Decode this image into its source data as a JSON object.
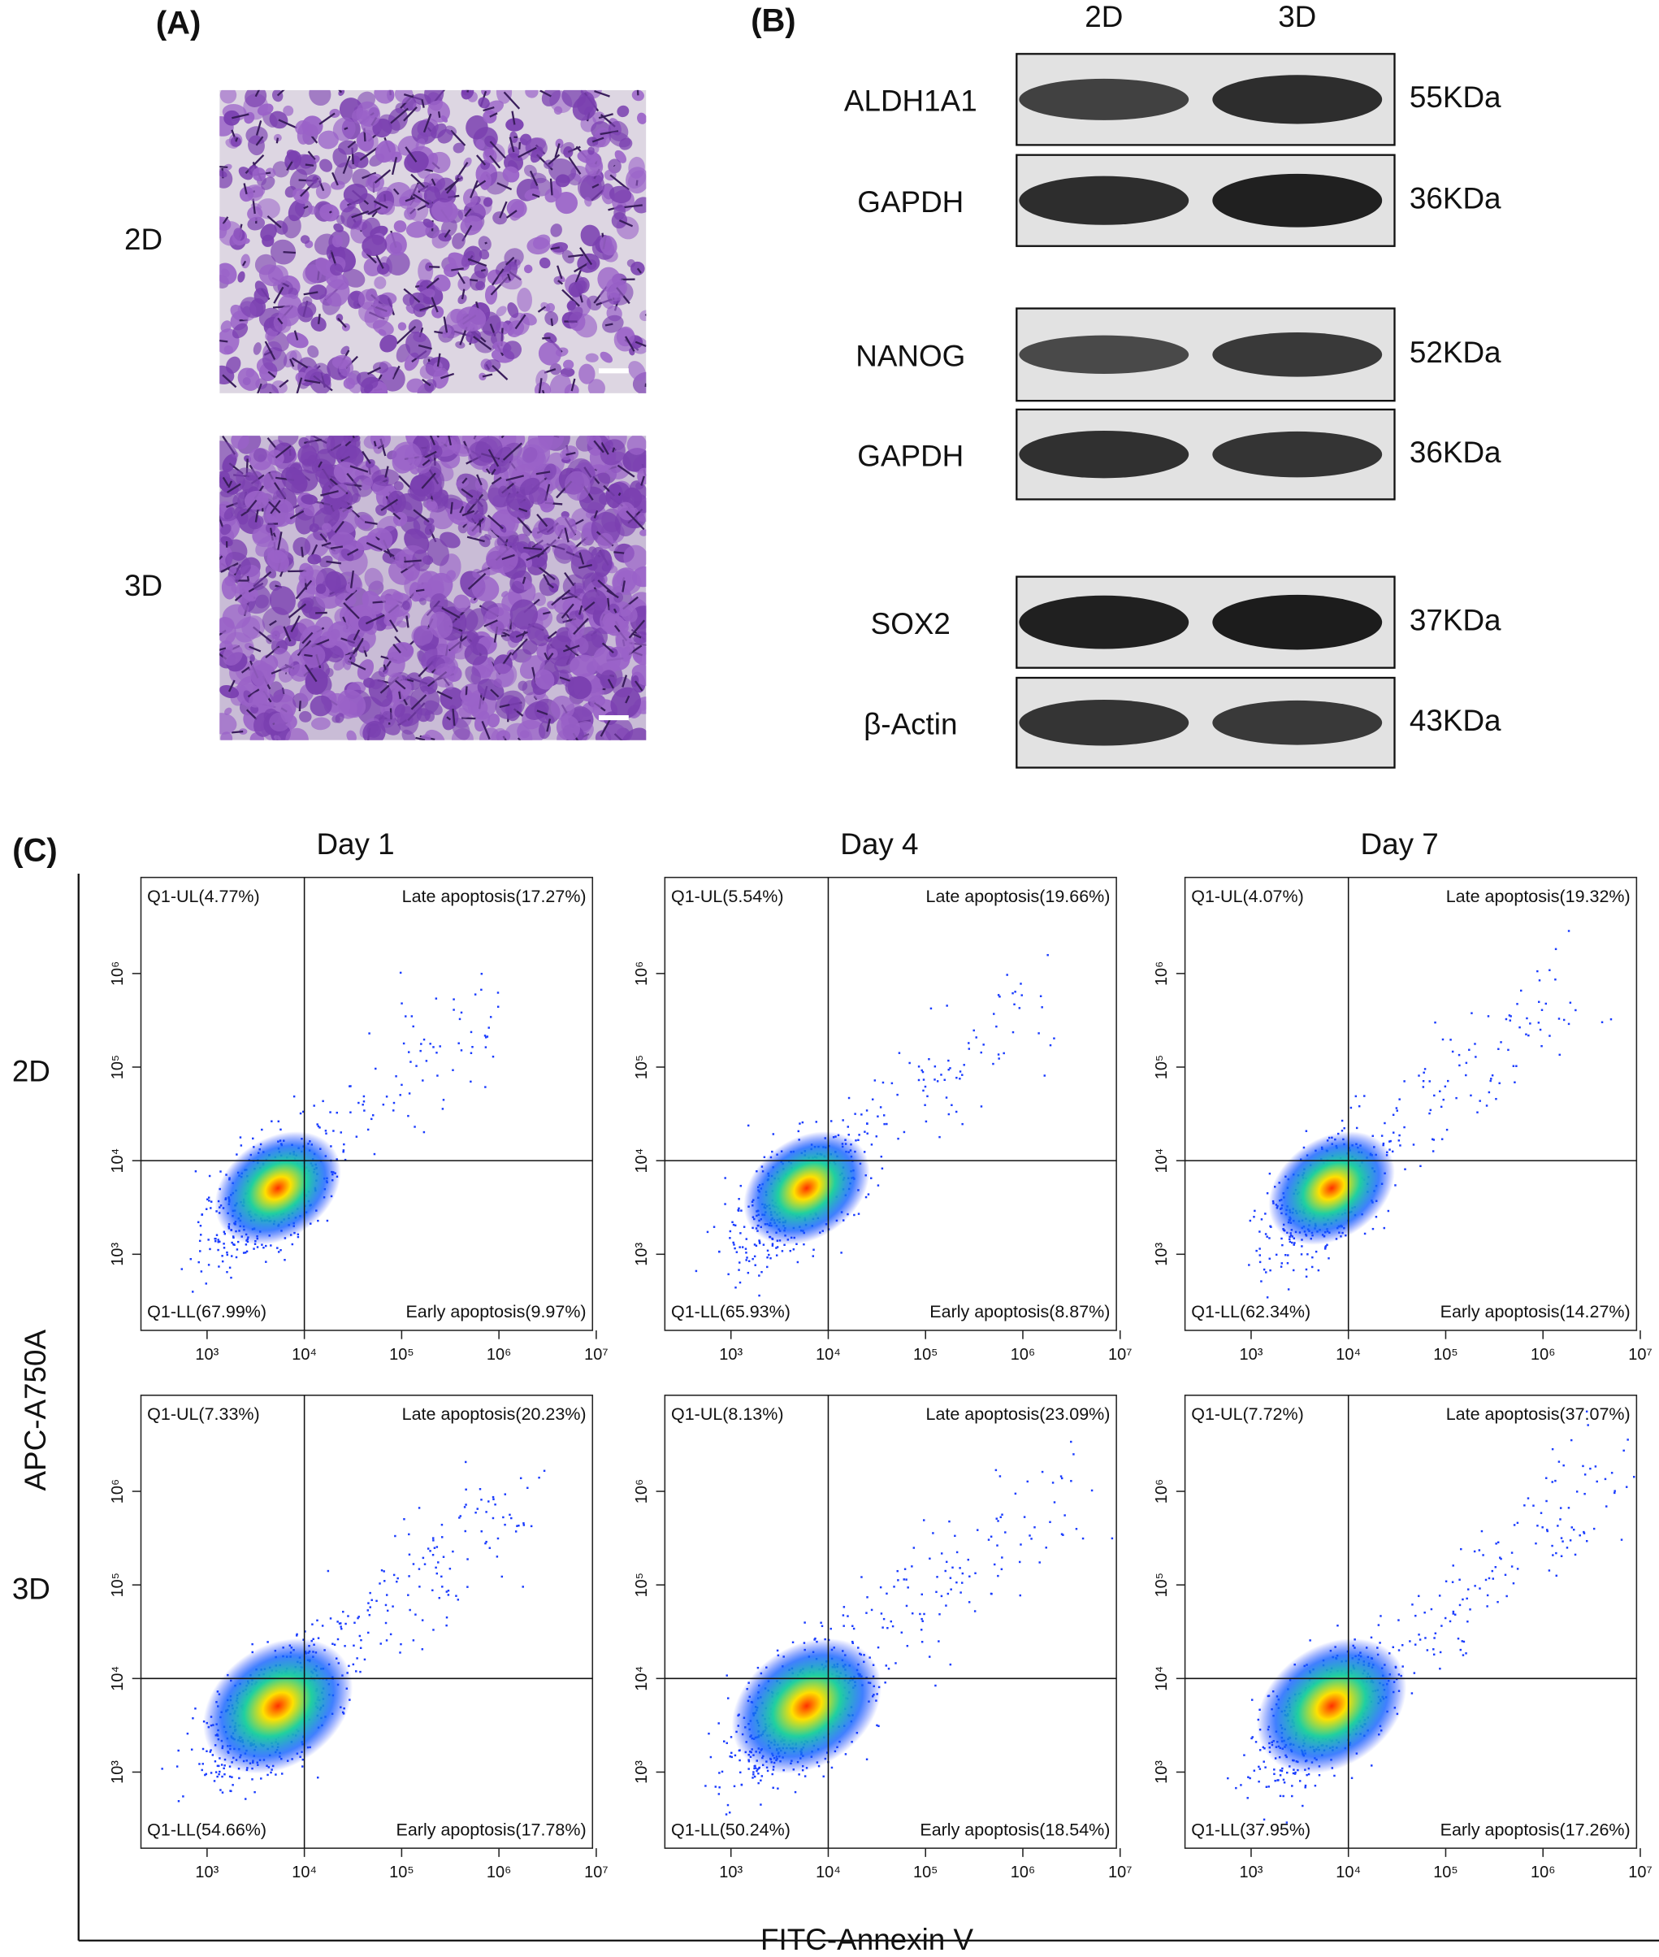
{
  "panel_a": {
    "label": "(A)",
    "rows": [
      "2D",
      "3D"
    ]
  },
  "panel_b": {
    "label": "(B)",
    "columns": [
      "2D",
      "3D"
    ],
    "blots": [
      {
        "protein": "ALDH1A1",
        "size": "55KDa"
      },
      {
        "protein": "GAPDH",
        "size": "36KDa"
      },
      {
        "protein": "NANOG",
        "size": "52KDa"
      },
      {
        "protein": "GAPDH",
        "size": "36KDa"
      },
      {
        "protein": "SOX2",
        "size": "37KDa"
      },
      {
        "protein": "β-Actin",
        "size": "43KDa"
      }
    ]
  },
  "panel_c": {
    "label": "(C)",
    "y_axis_label": "APC-A750A",
    "x_axis_label": "FITC-Annexin V",
    "columns": [
      "Day 1",
      "Day 4",
      "Day 7"
    ],
    "rows": [
      "2D",
      "3D"
    ],
    "x_ticks": [
      {
        "value": 3,
        "label": "10³"
      },
      {
        "value": 4,
        "label": "10⁴"
      },
      {
        "value": 5,
        "label": "10⁵"
      },
      {
        "value": 6,
        "label": "10⁶"
      },
      {
        "value": 7,
        "label": "10⁷"
      }
    ],
    "y_ticks": [
      {
        "value": 3,
        "label": "10³"
      },
      {
        "value": 4,
        "label": "10⁴"
      },
      {
        "value": 5,
        "label": "10⁵"
      },
      {
        "value": 6,
        "label": "10⁶"
      }
    ],
    "plots": [
      [
        {
          "ul": "Q1-UL(4.77%)",
          "ur": "Late apoptosis(17.27%)",
          "ll": "Q1-LL(67.99%)",
          "lr": "Early apoptosis(9.97%)"
        },
        {
          "ul": "Q1-UL(5.54%)",
          "ur": "Late apoptosis(19.66%)",
          "ll": "Q1-LL(65.93%)",
          "lr": "Early apoptosis(8.87%)"
        },
        {
          "ul": "Q1-UL(4.07%)",
          "ur": "Late apoptosis(19.32%)",
          "ll": "Q1-LL(62.34%)",
          "lr": "Early apoptosis(14.27%)"
        }
      ],
      [
        {
          "ul": "Q1-UL(7.33%)",
          "ur": "Late apoptosis(20.23%)",
          "ll": "Q1-LL(54.66%)",
          "lr": "Early apoptosis(17.78%)"
        },
        {
          "ul": "Q1-UL(8.13%)",
          "ur": "Late apoptosis(23.09%)",
          "ll": "Q1-LL(50.24%)",
          "lr": "Early apoptosis(18.54%)"
        },
        {
          "ul": "Q1-UL(7.72%)",
          "ur": "Late apoptosis(37.07%)",
          "ll": "Q1-LL(37.95%)",
          "lr": "Early apoptosis(17.26%)"
        }
      ]
    ]
  }
}
